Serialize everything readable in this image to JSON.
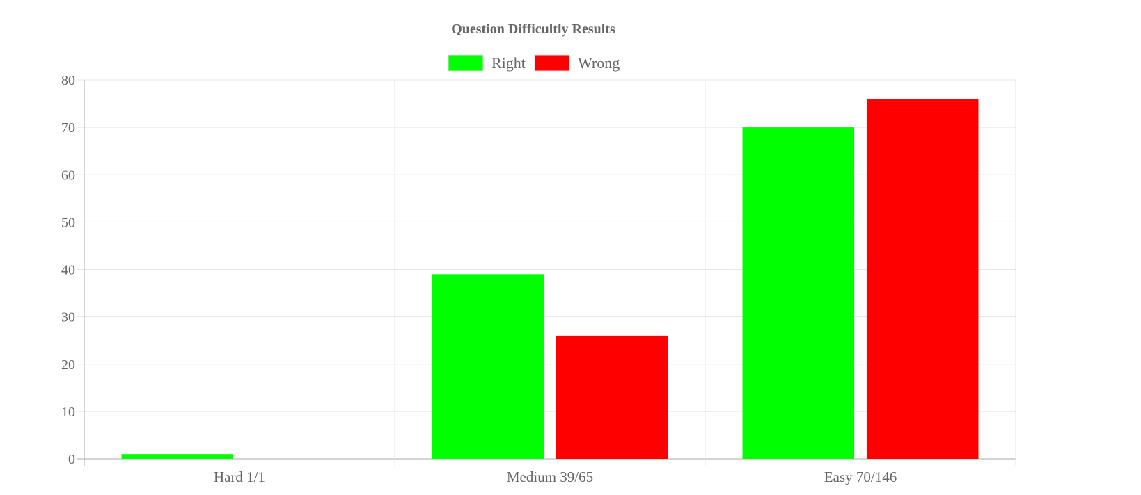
{
  "chart_data": {
    "type": "bar",
    "title": "Question Difficultly Results",
    "categories": [
      "Hard 1/1",
      "Medium 39/65",
      "Easy 70/146"
    ],
    "series": [
      {
        "name": "Right",
        "values": [
          1,
          39,
          70
        ],
        "color": "#00ff00"
      },
      {
        "name": "Wrong",
        "values": [
          0,
          26,
          76
        ],
        "color": "#ff0000"
      }
    ],
    "ylim": [
      0,
      80
    ],
    "yticks": [
      "0",
      "10",
      "20",
      "30",
      "40",
      "50",
      "60",
      "70",
      "80"
    ],
    "grid": true,
    "legend": "top-center"
  }
}
